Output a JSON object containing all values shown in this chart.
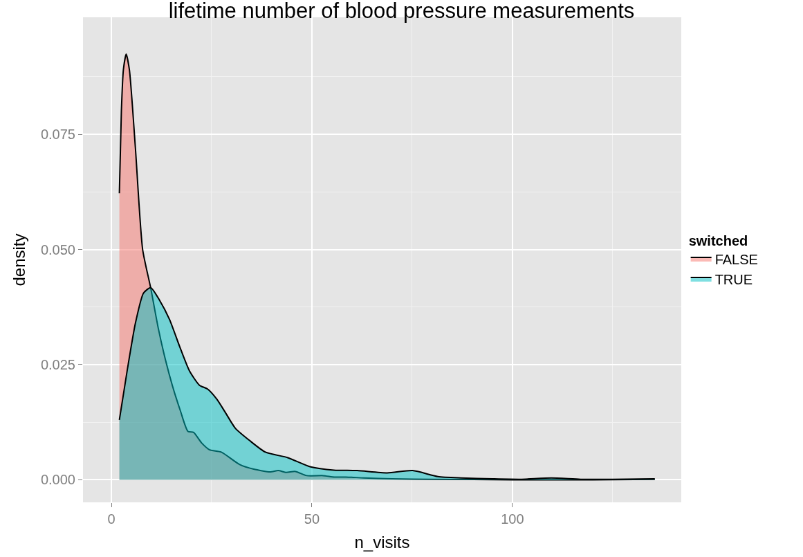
{
  "chart_data": {
    "type": "area",
    "title": "lifetime number of blood pressure measurements",
    "xlabel": "n_visits",
    "ylabel": "density",
    "legend_title": "switched",
    "legend": "right",
    "grid": true,
    "xlim": [
      -7.07,
      142.1
    ],
    "ylim": [
      -0.0049,
      0.1004
    ],
    "xticks": [
      0,
      50,
      100
    ],
    "yticks": [
      {
        "value": 0,
        "label": "0.000"
      },
      {
        "value": 0.025,
        "label": "0.025"
      },
      {
        "value": 0.05,
        "label": "0.050"
      },
      {
        "value": 0.075,
        "label": "0.075"
      }
    ],
    "series": [
      {
        "name": "FALSE",
        "color": "#f8766d",
        "x": [
          2,
          2.5,
          3,
          3.7,
          4.5,
          6,
          7.8,
          9.8,
          11.7,
          13.5,
          15.2,
          17.2,
          19.1,
          20.5,
          22.5,
          24.5,
          27.4,
          32,
          35.5,
          39.6,
          41.6,
          43.6,
          45.9,
          48.7,
          52.8,
          55.6,
          58.5,
          63,
          70,
          80,
          100,
          120,
          135.5
        ],
        "values": [
          0.0622,
          0.08,
          0.089,
          0.0924,
          0.089,
          0.072,
          0.05,
          0.0417,
          0.0329,
          0.026,
          0.0205,
          0.015,
          0.0105,
          0.0103,
          0.008,
          0.0065,
          0.006,
          0.0033,
          0.0023,
          0.0017,
          0.002,
          0.0016,
          0.0018,
          0.0009,
          0.0009,
          0.0006,
          0.0006,
          0.0004,
          0.0002,
          0.0001,
          0,
          0,
          0.0001
        ]
      },
      {
        "name": "TRUE",
        "color": "#00bfc4",
        "x": [
          2,
          4,
          6,
          8,
          9.8,
          12,
          14.5,
          17,
          19.5,
          22,
          24,
          26.3,
          28.5,
          30.9,
          34.5,
          38.4,
          44,
          49.7,
          55.5,
          61.3,
          68.8,
          75.1,
          81.4,
          87.2,
          95,
          102,
          109.7,
          117,
          125,
          135.5
        ],
        "values": [
          0.013,
          0.024,
          0.034,
          0.0405,
          0.0417,
          0.039,
          0.0348,
          0.029,
          0.0236,
          0.0205,
          0.0197,
          0.0175,
          0.0145,
          0.0112,
          0.0085,
          0.006,
          0.0048,
          0.0028,
          0.0021,
          0.002,
          0.0015,
          0.002,
          0.0007,
          0.0004,
          0.0002,
          0.0001,
          0.0004,
          0.0001,
          0.0001,
          0.0002
        ]
      }
    ]
  }
}
